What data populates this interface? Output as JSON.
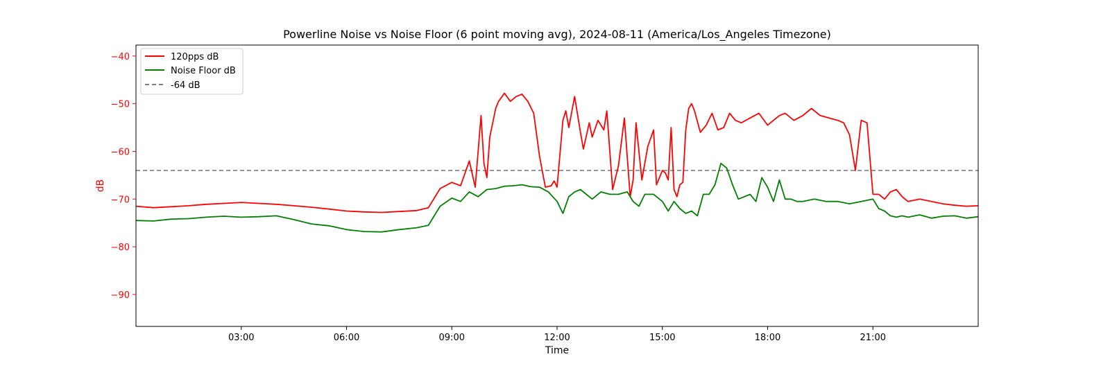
{
  "chart_data": {
    "type": "line",
    "title": "Powerline Noise vs Noise Floor (6 point moving avg), 2024-08-11 (America/Los_Angeles Timezone)",
    "xlabel": "Time",
    "ylabel": "dB",
    "xlim": [
      "00:00",
      "24:00"
    ],
    "ylim": [
      -96.7,
      -37.7
    ],
    "x_ticks": [
      "03:00",
      "06:00",
      "09:00",
      "12:00",
      "15:00",
      "18:00",
      "21:00"
    ],
    "y_ticks": [
      -40,
      -50,
      -60,
      -70,
      -80,
      -90
    ],
    "y_tick_labels": [
      "−40",
      "−50",
      "−60",
      "−70",
      "−80",
      "−90"
    ],
    "grid": false,
    "legend_position": "top-left",
    "colors": {
      "signal": "#ff0000",
      "floor": "#008000",
      "threshold": "#808080",
      "axis_label": "#ff0000"
    },
    "threshold": {
      "name": "-64 dB",
      "value": -64
    },
    "series": [
      {
        "name": "120pps dB",
        "color": "#ff0000",
        "x": [
          "00:00",
          "00:30",
          "01:00",
          "01:30",
          "02:00",
          "02:30",
          "03:00",
          "03:30",
          "04:00",
          "04:30",
          "05:00",
          "05:30",
          "06:00",
          "06:30",
          "07:00",
          "07:30",
          "08:00",
          "08:20",
          "08:40",
          "09:00",
          "09:15",
          "09:30",
          "09:40",
          "09:50",
          "09:55",
          "10:00",
          "10:05",
          "10:15",
          "10:20",
          "10:30",
          "10:40",
          "10:50",
          "11:00",
          "11:10",
          "11:20",
          "11:30",
          "11:40",
          "11:50",
          "11:55",
          "12:00",
          "12:10",
          "12:15",
          "12:20",
          "12:30",
          "12:40",
          "12:45",
          "12:55",
          "13:00",
          "13:10",
          "13:20",
          "13:25",
          "13:35",
          "13:45",
          "13:55",
          "14:05",
          "14:10",
          "14:15",
          "14:25",
          "14:35",
          "14:45",
          "14:50",
          "15:00",
          "15:05",
          "15:10",
          "15:15",
          "15:20",
          "15:25",
          "15:30",
          "15:35",
          "15:40",
          "15:45",
          "15:50",
          "15:55",
          "16:05",
          "16:15",
          "16:25",
          "16:35",
          "16:45",
          "16:55",
          "17:05",
          "17:15",
          "17:30",
          "17:45",
          "18:00",
          "18:10",
          "18:20",
          "18:30",
          "18:45",
          "19:00",
          "19:15",
          "19:30",
          "19:45",
          "20:00",
          "20:10",
          "20:20",
          "20:30",
          "20:40",
          "20:50",
          "21:00",
          "21:10",
          "21:20",
          "21:30",
          "21:40",
          "21:50",
          "22:00",
          "22:20",
          "22:40",
          "23:00",
          "23:20",
          "23:40",
          "24:00"
        ],
        "values": [
          -71.5,
          -71.8,
          -71.6,
          -71.4,
          -71.1,
          -70.9,
          -70.7,
          -70.9,
          -71.1,
          -71.4,
          -71.7,
          -72.1,
          -72.5,
          -72.7,
          -72.8,
          -72.6,
          -72.4,
          -71.8,
          -67.8,
          -66.5,
          -67.2,
          -62.0,
          -67.5,
          -52.5,
          -62.5,
          -65.5,
          -57.0,
          -51.0,
          -49.5,
          -47.8,
          -49.5,
          -48.5,
          -48.0,
          -49.5,
          -52.0,
          -61.0,
          -67.5,
          -67.2,
          -66.2,
          -67.5,
          -53.5,
          -51.5,
          -55.0,
          -48.5,
          -56.0,
          -59.5,
          -54.0,
          -57.0,
          -53.5,
          -55.5,
          -51.5,
          -68.0,
          -63.0,
          -53.0,
          -69.5,
          -66.0,
          -54.0,
          -66.0,
          -59.0,
          -55.5,
          -67.0,
          -64.0,
          -64.5,
          -66.0,
          -55.0,
          -68.0,
          -69.5,
          -67.0,
          -66.5,
          -55.5,
          -51.0,
          -50.0,
          -51.5,
          -56.0,
          -54.5,
          -52.0,
          -55.5,
          -55.0,
          -52.0,
          -53.5,
          -54.0,
          -53.0,
          -52.0,
          -54.5,
          -53.5,
          -52.5,
          -52.0,
          -53.5,
          -52.5,
          -51.0,
          -52.5,
          -53.0,
          -53.5,
          -54.0,
          -56.5,
          -64.0,
          -53.5,
          -54.0,
          -69.0,
          -69.0,
          -70.0,
          -68.5,
          -68.0,
          -69.5,
          -70.5,
          -70.0,
          -70.5,
          -71.0,
          -71.3,
          -71.5,
          -71.4
        ]
      },
      {
        "name": "Noise Floor dB",
        "color": "#008000",
        "x": [
          "00:00",
          "00:30",
          "01:00",
          "01:30",
          "02:00",
          "02:30",
          "03:00",
          "03:30",
          "04:00",
          "04:30",
          "05:00",
          "05:30",
          "06:00",
          "06:30",
          "07:00",
          "07:30",
          "08:00",
          "08:20",
          "08:40",
          "09:00",
          "09:15",
          "09:30",
          "09:45",
          "10:00",
          "10:15",
          "10:30",
          "10:45",
          "11:00",
          "11:15",
          "11:30",
          "11:45",
          "12:00",
          "12:10",
          "12:20",
          "12:30",
          "12:40",
          "13:00",
          "13:15",
          "13:30",
          "13:45",
          "14:00",
          "14:10",
          "14:20",
          "14:30",
          "14:45",
          "15:00",
          "15:10",
          "15:20",
          "15:30",
          "15:40",
          "15:50",
          "16:00",
          "16:10",
          "16:20",
          "16:30",
          "16:40",
          "16:50",
          "17:00",
          "17:10",
          "17:20",
          "17:30",
          "17:40",
          "17:50",
          "18:00",
          "18:10",
          "18:20",
          "18:30",
          "18:40",
          "18:50",
          "19:00",
          "19:20",
          "19:40",
          "20:00",
          "20:20",
          "20:40",
          "21:00",
          "21:10",
          "21:20",
          "21:30",
          "21:40",
          "21:50",
          "22:00",
          "22:20",
          "22:40",
          "23:00",
          "23:20",
          "23:40",
          "24:00"
        ],
        "values": [
          -74.5,
          -74.6,
          -74.2,
          -74.1,
          -73.8,
          -73.6,
          -73.8,
          -73.7,
          -73.5,
          -74.3,
          -75.2,
          -75.6,
          -76.4,
          -76.8,
          -76.9,
          -76.4,
          -76.0,
          -75.5,
          -71.5,
          -69.8,
          -70.5,
          -68.5,
          -69.5,
          -68.0,
          -67.8,
          -67.3,
          -67.2,
          -67.0,
          -67.4,
          -67.5,
          -68.5,
          -70.5,
          -73.0,
          -69.5,
          -68.5,
          -68.0,
          -70.0,
          -68.5,
          -69.0,
          -69.0,
          -68.5,
          -70.5,
          -71.5,
          -69.0,
          -69.0,
          -70.5,
          -72.5,
          -70.5,
          -72.0,
          -73.0,
          -72.5,
          -73.5,
          -69.0,
          -69.0,
          -67.0,
          -62.5,
          -63.5,
          -67.0,
          -70.0,
          -69.5,
          -69.0,
          -70.5,
          -65.5,
          -67.5,
          -70.5,
          -66.0,
          -70.0,
          -70.0,
          -70.5,
          -70.5,
          -70.0,
          -70.5,
          -70.5,
          -71.0,
          -70.5,
          -70.0,
          -72.0,
          -72.5,
          -73.5,
          -73.8,
          -73.5,
          -73.8,
          -73.3,
          -74.0,
          -73.6,
          -73.5,
          -74.0,
          -73.7
        ]
      }
    ]
  },
  "legend": {
    "items": [
      {
        "label": "120pps dB"
      },
      {
        "label": "Noise Floor dB"
      },
      {
        "label": "-64 dB"
      }
    ]
  }
}
